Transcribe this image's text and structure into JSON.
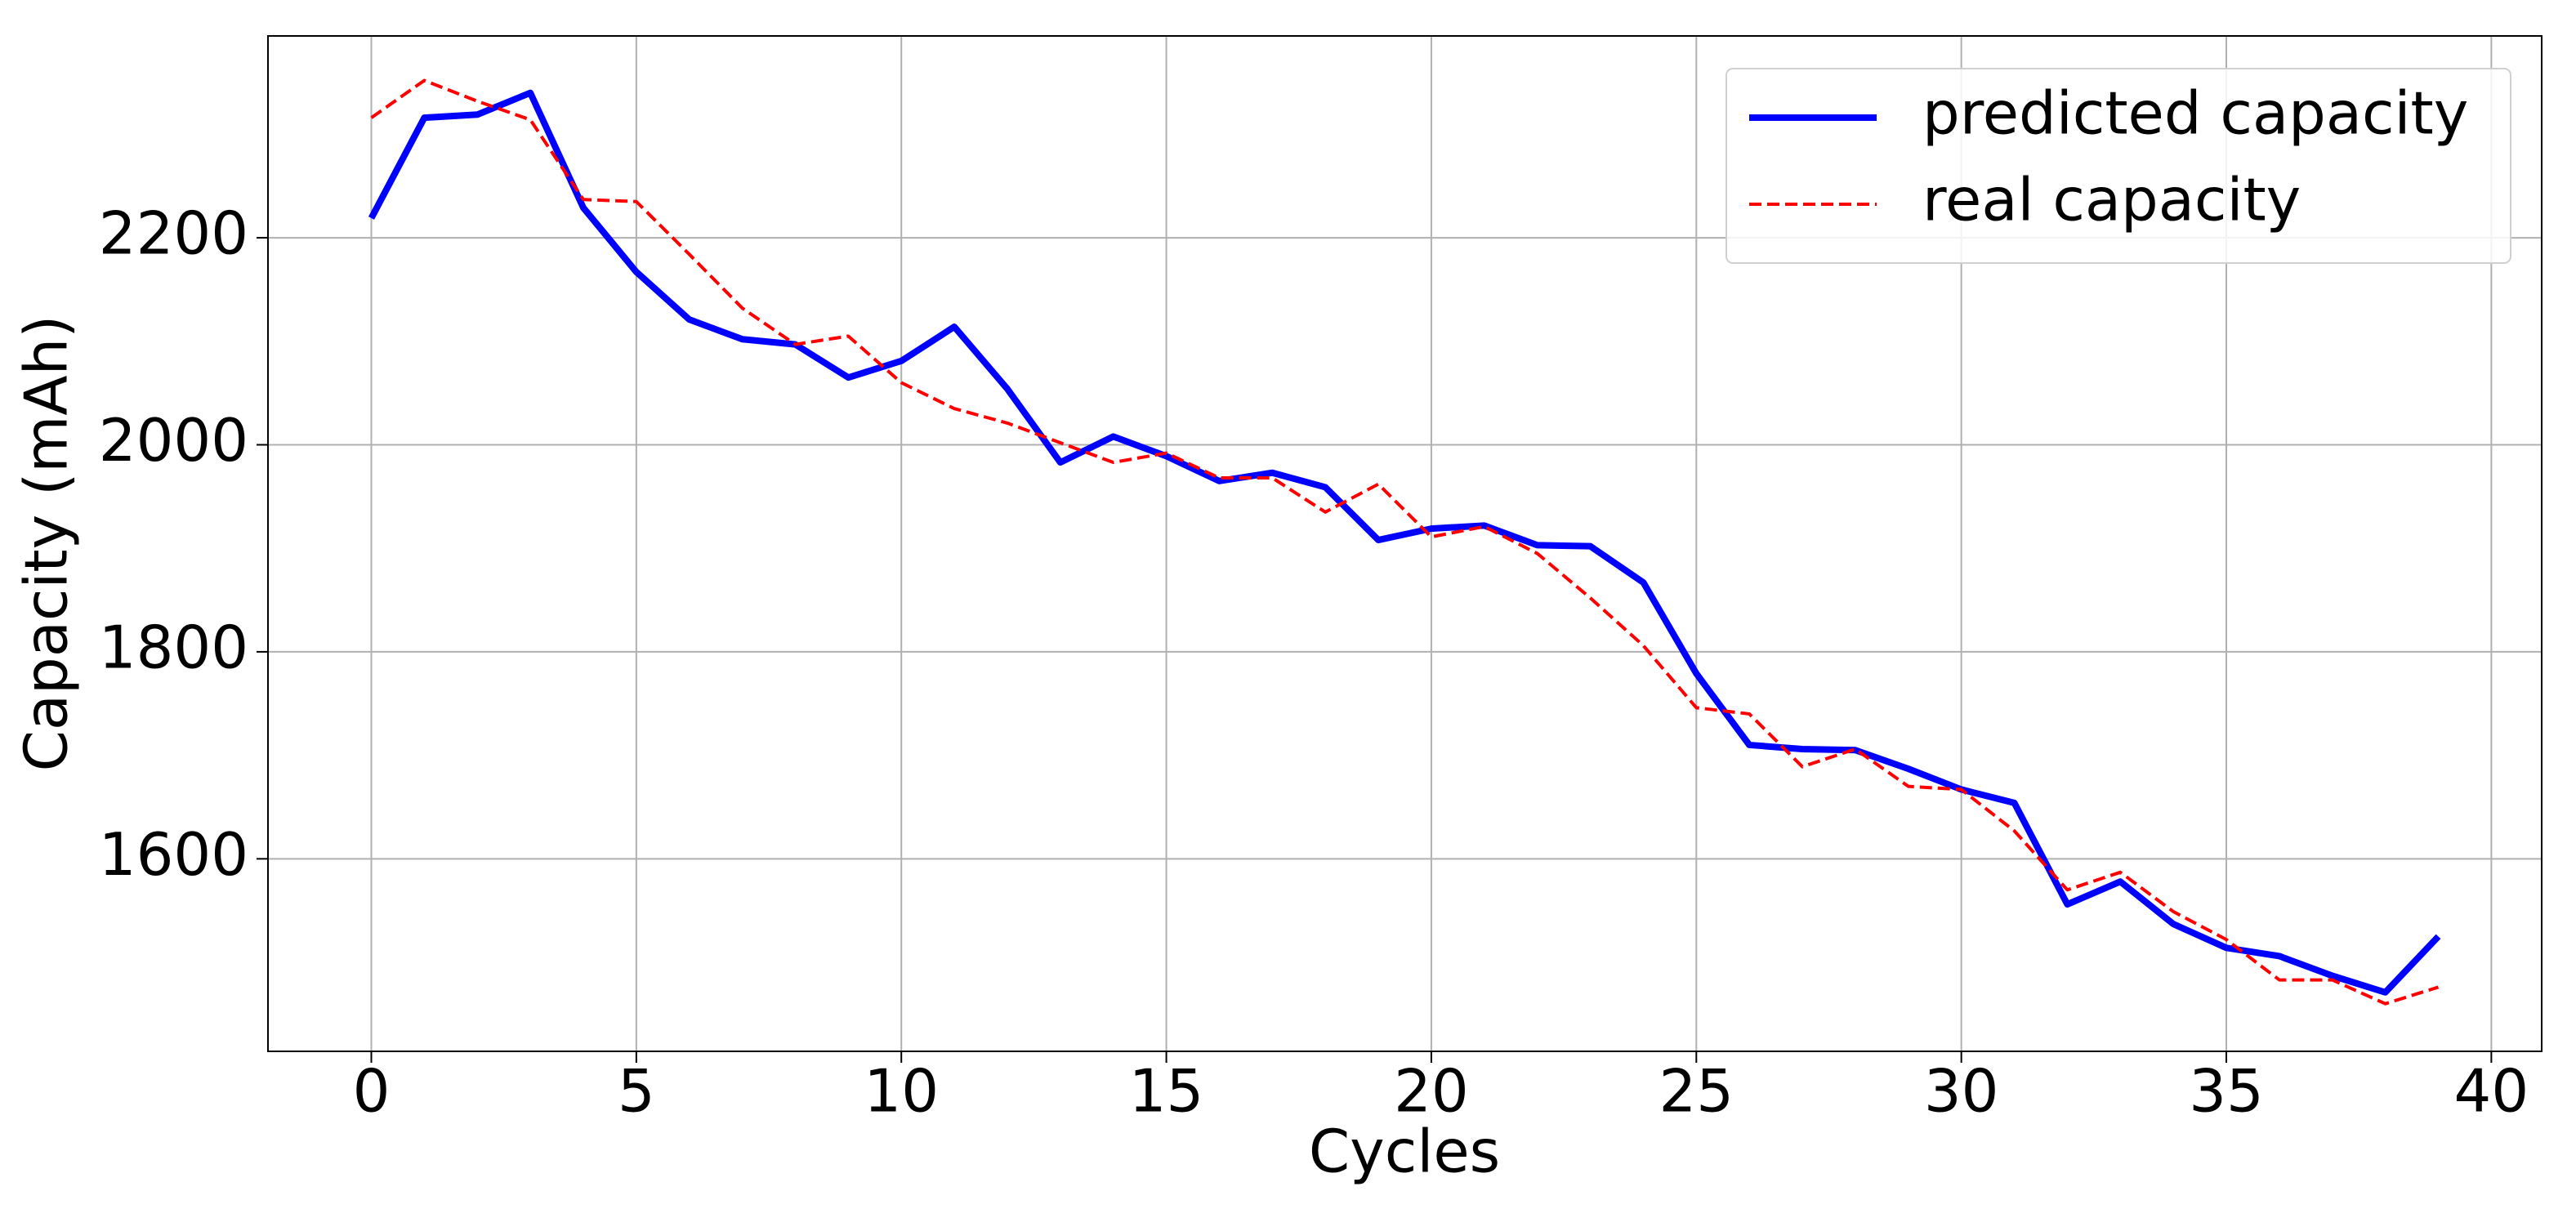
{
  "chart_data": {
    "type": "line",
    "xlabel": "Cycles",
    "ylabel": "Capacity (mAh)",
    "x": [
      0,
      1,
      2,
      3,
      4,
      5,
      6,
      7,
      8,
      9,
      10,
      11,
      12,
      13,
      14,
      15,
      16,
      17,
      18,
      19,
      20,
      21,
      22,
      23,
      24,
      25,
      26,
      27,
      28,
      29,
      30,
      31,
      32,
      33,
      34,
      35,
      36,
      37,
      38,
      39
    ],
    "series": [
      {
        "name": "predicted capacity",
        "color": "#0000ff",
        "style": "solid",
        "values": [
          2219,
          2316,
          2319,
          2340,
          2229,
          2167,
          2121,
          2102,
          2097,
          2065,
          2081,
          2114,
          2054,
          1983,
          2008,
          1989,
          1965,
          1973,
          1959,
          1908,
          1919,
          1922,
          1903,
          1902,
          1867,
          1779,
          1710,
          1706,
          1705,
          1687,
          1667,
          1654,
          1556,
          1578,
          1537,
          1514,
          1506,
          1487,
          1471,
          1525
        ]
      },
      {
        "name": "real capacity",
        "color": "#ff0000",
        "style": "dashed",
        "values": [
          2316,
          2352,
          2332,
          2314,
          2237,
          2235,
          2184,
          2132,
          2097,
          2105,
          2060,
          2035,
          2021,
          2002,
          1983,
          1992,
          1968,
          1968,
          1935,
          1962,
          1911,
          1921,
          1895,
          1852,
          1806,
          1746,
          1740,
          1689,
          1706,
          1670,
          1667,
          1627,
          1570,
          1587,
          1549,
          1522,
          1483,
          1483,
          1460,
          1476
        ]
      }
    ],
    "xlim": [
      -1.95,
      40.95
    ],
    "xticks": [
      0,
      5,
      10,
      15,
      20,
      25,
      30,
      35,
      40
    ],
    "ylim": [
      1414,
      2395
    ],
    "yticks": [
      1600,
      1800,
      2000,
      2200
    ],
    "grid": true,
    "legend": "upper right"
  }
}
